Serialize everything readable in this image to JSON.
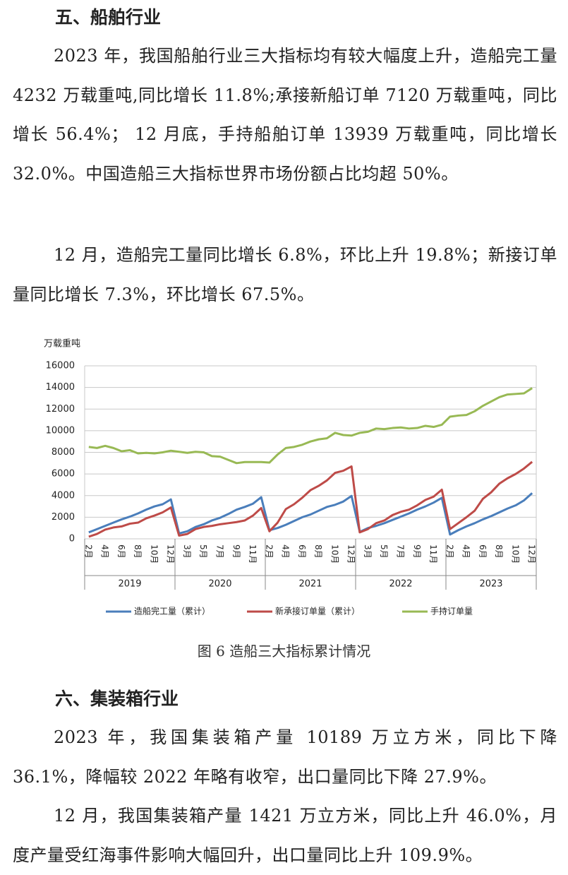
{
  "section1": {
    "heading": "五、船舶行业",
    "paragraphs": [
      "2023 年，我国船舶行业三大指标均有较大幅度上升，造船完工量 4232 万载重吨,同比增长 11.8%;承接新船订单 7120 万载重吨，同比增长 56.4%； 12 月底，手持船舶订单 13939 万载重吨，同比增长 32.0%。中国造船三大指标世界市场份额占比均超 50%。",
      "12 月，造船完工量同比增长 6.8%，环比上升 19.8%；新接订单量同比增长 7.3%，环比增长 67.5%。"
    ]
  },
  "chart_data": {
    "type": "line",
    "title": "图 6 造船三大指标累计情况",
    "y_label": "万载重吨",
    "categories": [
      "2月",
      null,
      "4月",
      null,
      "6月",
      null,
      "8月",
      null,
      "10月",
      null,
      "12月",
      null,
      "3月",
      null,
      "5月",
      null,
      "7月",
      null,
      "9月",
      null,
      "11月",
      null,
      "2月",
      null,
      "4月",
      null,
      "6月",
      null,
      "8月",
      null,
      "10月",
      null,
      "12月",
      null,
      "3月",
      null,
      "5月",
      null,
      "7月",
      null,
      "9月",
      null,
      "11月",
      null,
      "2月",
      null,
      "4月",
      null,
      "6月",
      null,
      "8月",
      null,
      "10月",
      null,
      "12月"
    ],
    "x_groups": [
      "2019",
      "2020",
      "2021",
      "2022",
      "2023"
    ],
    "series": [
      {
        "name": "造船完工量（累计）",
        "color": "#4a7ebb",
        "values": [
          600,
          900,
          1200,
          1500,
          1800,
          2050,
          2350,
          2700,
          3000,
          3200,
          3650,
          500,
          700,
          1100,
          1350,
          1700,
          1950,
          2300,
          2700,
          2950,
          3250,
          3850,
          800,
          1000,
          1300,
          1650,
          2000,
          2250,
          2600,
          2950,
          3150,
          3450,
          3970,
          650,
          1000,
          1200,
          1450,
          1750,
          2050,
          2350,
          2700,
          3000,
          3350,
          3790,
          400,
          800,
          1150,
          1450,
          1800,
          2100,
          2450,
          2800,
          3100,
          3550,
          4232
        ]
      },
      {
        "name": "新承接订单量（累计）",
        "color": "#be4b48",
        "values": [
          200,
          450,
          850,
          1050,
          1150,
          1400,
          1500,
          1900,
          2150,
          2450,
          2900,
          300,
          450,
          900,
          1100,
          1200,
          1350,
          1450,
          1550,
          1700,
          2150,
          2850,
          700,
          1500,
          2750,
          3200,
          3800,
          4500,
          4900,
          5400,
          6100,
          6300,
          6700,
          600,
          900,
          1450,
          1700,
          2200,
          2500,
          2700,
          3100,
          3600,
          3900,
          4550,
          900,
          1450,
          2000,
          2600,
          3700,
          4300,
          5100,
          5600,
          6000,
          6500,
          7120
        ]
      },
      {
        "name": "手持订单量",
        "color": "#98b954",
        "values": [
          8500,
          8400,
          8600,
          8400,
          8100,
          8200,
          7900,
          7950,
          7900,
          8000,
          8150,
          8050,
          7950,
          8050,
          8000,
          7650,
          7600,
          7300,
          7000,
          7100,
          7100,
          7100,
          7050,
          7800,
          8400,
          8500,
          8700,
          9000,
          9200,
          9300,
          9800,
          9600,
          9550,
          9800,
          9900,
          10200,
          10150,
          10250,
          10300,
          10200,
          10250,
          10450,
          10350,
          10550,
          11300,
          11400,
          11450,
          11800,
          12300,
          12700,
          13100,
          13350,
          13400,
          13450,
          13939
        ]
      }
    ],
    "ylim": [
      0,
      16000
    ],
    "yticks": [
      0,
      2000,
      4000,
      6000,
      8000,
      10000,
      12000,
      14000,
      16000
    ],
    "grid": true,
    "legend": "bottom"
  },
  "section2": {
    "heading": "六、集装箱行业",
    "paragraphs": [
      "2023 年，我国集装箱产量 10189 万立方米，同比下降 36.1%，降幅较 2022 年略有收窄，出口量同比下降 27.9%。",
      "12 月，我国集装箱产量 1421 万立方米，同比上升 46.0%，月度产量受红海事件影响大幅回升，出口量同比上升 109.9%。"
    ]
  }
}
